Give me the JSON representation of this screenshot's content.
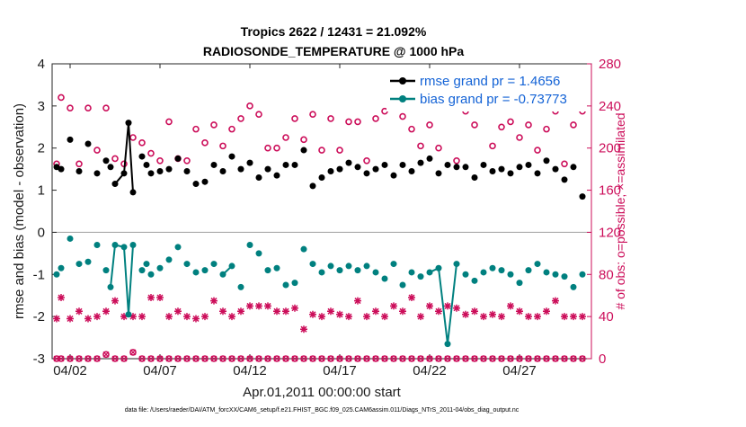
{
  "chart_data": {
    "type": "line",
    "title": "Tropics 2622 / 12431 = 21.092%",
    "subtitle": "RADIOSONDE_TEMPERATURE @ 1000 hPa",
    "xlabel": "Apr.01,2011 00:00:00 start",
    "ylabel": "rmse and bias (model - observation)",
    "ylabel_right": "# of obs: o=possible; ×=assimilated",
    "footer": "data file: /Users/raeder/DAI/ATM_forcXX/CAM6_setup/f.e21.FHIST_BGC.f09_025.CAM6assim.011/Diags_NTrS_2011-04/obs_diag_output.nc",
    "xlim": [
      0.5,
      30.5
    ],
    "ylim": [
      -3,
      4
    ],
    "ylim_right": [
      0,
      280
    ],
    "x_ticks": [
      1.5,
      6.5,
      11.5,
      16.5,
      21.5,
      26.5
    ],
    "x_tick_labels": [
      "04/02",
      "04/07",
      "04/12",
      "04/17",
      "04/22",
      "04/27"
    ],
    "y_ticks": [
      -3,
      -2,
      -1,
      0,
      1,
      2,
      3,
      4
    ],
    "y_tick_labels": [
      "-3",
      "-2",
      "-1",
      "0",
      "1",
      "2",
      "3",
      "4"
    ],
    "y_ticks_right": [
      0,
      40,
      80,
      120,
      160,
      200,
      240,
      280
    ],
    "y_tick_labels_right": [
      "0",
      "40",
      "80",
      "120",
      "160",
      "200",
      "240",
      "280"
    ],
    "colors": {
      "rmse": "#000000",
      "bias": "#00807f",
      "obs": "#cc0e5a",
      "legend_text": "#1463d6",
      "zero_line": "#aaaaaa"
    },
    "legend_position": "top-right",
    "series": [
      {
        "name": "rmse grand pr = 1.4656",
        "x": [
          0.75,
          1.0,
          1.5,
          2.0,
          2.5,
          3.0,
          3.5,
          3.75,
          4.0,
          4.5,
          4.75,
          5.0,
          5.5,
          5.75,
          6.0,
          6.5,
          7.0,
          7.5,
          8.0,
          8.5,
          9.0,
          9.5,
          10.0,
          10.5,
          11.0,
          11.5,
          12.0,
          12.5,
          13.0,
          13.5,
          14.0,
          14.5,
          15.0,
          15.5,
          16.0,
          16.5,
          17.0,
          17.5,
          18.0,
          18.5,
          19.0,
          19.5,
          20.0,
          20.5,
          21.0,
          21.5,
          22.0,
          22.5,
          23.0,
          23.5,
          24.0,
          24.5,
          25.0,
          25.5,
          26.0,
          26.5,
          27.0,
          27.5,
          28.0,
          28.5,
          29.0,
          29.5,
          30.0
        ],
        "y": [
          1.55,
          1.5,
          2.2,
          1.45,
          2.1,
          1.4,
          1.7,
          1.55,
          1.15,
          1.4,
          2.6,
          0.95,
          1.8,
          1.6,
          1.4,
          1.45,
          1.5,
          1.75,
          1.45,
          1.15,
          1.2,
          1.6,
          1.45,
          1.8,
          1.5,
          1.65,
          1.3,
          1.5,
          1.35,
          1.6,
          1.6,
          1.95,
          1.1,
          1.3,
          1.45,
          1.5,
          1.65,
          1.55,
          1.4,
          1.5,
          1.6,
          1.35,
          1.6,
          1.45,
          1.65,
          1.75,
          1.4,
          1.6,
          1.55,
          1.55,
          1.3,
          1.6,
          1.45,
          1.5,
          1.4,
          1.55,
          1.6,
          1.4,
          1.7,
          1.5,
          1.25,
          1.55,
          0.85
        ],
        "segments": [
          [
            2.5,
            2.75,
            3.0,
            3.25,
            3.5,
            3.75
          ],
          [
            11.75,
            11.9
          ]
        ]
      },
      {
        "name": "bias grand pr = -0.73773",
        "x": [
          0.75,
          1.0,
          1.5,
          2.0,
          2.5,
          3.0,
          3.5,
          3.75,
          4.0,
          4.5,
          4.75,
          5.0,
          5.5,
          5.75,
          6.0,
          6.5,
          7.0,
          7.5,
          8.0,
          8.5,
          9.0,
          9.5,
          10.0,
          10.5,
          11.0,
          11.5,
          12.0,
          12.5,
          13.0,
          13.5,
          14.0,
          14.5,
          15.0,
          15.5,
          16.0,
          16.5,
          17.0,
          17.5,
          18.0,
          18.5,
          19.0,
          19.5,
          20.0,
          20.5,
          21.0,
          21.5,
          22.0,
          22.5,
          23.0,
          23.5,
          24.0,
          24.5,
          25.0,
          25.5,
          26.0,
          26.5,
          27.0,
          27.5,
          28.0,
          28.5,
          29.0,
          29.5,
          30.0
        ],
        "y": [
          -1.0,
          -0.85,
          -0.15,
          -0.75,
          -0.7,
          -0.3,
          -0.9,
          -1.3,
          -0.3,
          -0.35,
          -1.95,
          -0.3,
          -0.9,
          -0.75,
          -1.0,
          -0.85,
          -0.65,
          -0.35,
          -0.75,
          -0.95,
          -0.9,
          -0.75,
          -1.0,
          -0.8,
          -1.3,
          -0.3,
          -0.5,
          -0.9,
          -0.85,
          -1.25,
          -1.2,
          -0.4,
          -0.75,
          -0.95,
          -0.8,
          -0.9,
          -0.8,
          -0.9,
          -0.8,
          -0.95,
          -1.1,
          -0.75,
          -1.25,
          -0.95,
          -1.05,
          -0.95,
          -0.85,
          -2.65,
          -0.75,
          -1.0,
          -1.15,
          -0.95,
          -0.85,
          -0.9,
          -1.0,
          -1.2,
          -0.9,
          -0.75,
          -0.95,
          -1.0,
          -1.05,
          -1.3,
          -1.0
        ]
      },
      {
        "name": "possible obs (o)",
        "x": [
          0.75,
          1.0,
          1.5,
          2.0,
          2.5,
          3.0,
          3.5,
          4.0,
          4.5,
          5.0,
          5.5,
          6.0,
          6.5,
          7.0,
          7.5,
          8.0,
          8.5,
          9.0,
          9.5,
          10.0,
          10.5,
          11.0,
          11.5,
          12.0,
          12.5,
          13.0,
          13.5,
          14.0,
          14.5,
          15.0,
          15.5,
          16.0,
          16.5,
          17.0,
          17.5,
          18.0,
          18.5,
          19.0,
          19.5,
          20.0,
          20.5,
          21.0,
          21.5,
          22.0,
          22.5,
          23.0,
          23.5,
          24.0,
          24.5,
          25.0,
          25.5,
          26.0,
          26.5,
          27.0,
          27.5,
          28.0,
          28.5,
          29.0,
          29.5,
          30.0
        ],
        "y": [
          185,
          248,
          238,
          185,
          238,
          198,
          238,
          190,
          185,
          210,
          205,
          195,
          188,
          225,
          190,
          188,
          218,
          205,
          222,
          202,
          218,
          228,
          240,
          232,
          200,
          200,
          210,
          228,
          208,
          232,
          198,
          228,
          198,
          225,
          225,
          188,
          228,
          235,
          238,
          230,
          218,
          202,
          222,
          200,
          240,
          188,
          235,
          222,
          238,
          202,
          220,
          225,
          210,
          222,
          198,
          218,
          235,
          185,
          222,
          235
        ],
        "label": "o"
      },
      {
        "name": "assimilated obs (×)",
        "x": [
          0.75,
          1.0,
          1.5,
          2.0,
          2.5,
          3.0,
          3.5,
          4.0,
          4.5,
          5.0,
          5.5,
          6.0,
          6.5,
          7.0,
          7.5,
          8.0,
          8.5,
          9.0,
          9.5,
          10.0,
          10.5,
          11.0,
          11.5,
          12.0,
          12.5,
          13.0,
          13.5,
          14.0,
          14.5,
          15.0,
          15.5,
          16.0,
          16.5,
          17.0,
          17.5,
          18.0,
          18.5,
          19.0,
          19.5,
          20.0,
          20.5,
          21.0,
          21.5,
          22.0,
          22.5,
          23.0,
          23.5,
          24.0,
          24.5,
          25.0,
          25.5,
          26.0,
          26.5,
          27.0,
          27.5,
          28.0,
          28.5,
          29.0,
          29.5,
          30.0
        ],
        "y": [
          38,
          58,
          38,
          45,
          38,
          40,
          45,
          55,
          40,
          40,
          40,
          58,
          58,
          40,
          45,
          40,
          38,
          40,
          55,
          45,
          40,
          45,
          50,
          50,
          50,
          45,
          45,
          48,
          28,
          42,
          40,
          45,
          42,
          40,
          55,
          40,
          45,
          40,
          50,
          45,
          58,
          40,
          50,
          45,
          50,
          48,
          42,
          45,
          40,
          42,
          40,
          50,
          45,
          40,
          40,
          45,
          55,
          40,
          40,
          40
        ],
        "label": "×"
      }
    ],
    "possible_obs_baseline": {
      "x": [
        0.75,
        1.0,
        1.5,
        2.0,
        2.5,
        3.0,
        3.5,
        4.0,
        4.5,
        5.0,
        5.5,
        6.0,
        6.5,
        7.0,
        7.5,
        8.0,
        8.5,
        9.0,
        9.5,
        10.0,
        10.5,
        11.0,
        11.5,
        12.0,
        12.5,
        13.0,
        13.5,
        14.0,
        14.5,
        15.0,
        15.5,
        16.0,
        16.5,
        17.0,
        17.5,
        18.0,
        18.5,
        19.0,
        19.5,
        20.0,
        20.5,
        21.0,
        21.5,
        22.0,
        22.5,
        23.0,
        23.5,
        24.0,
        24.5,
        25.0,
        25.5,
        26.0,
        26.5,
        27.0,
        27.5,
        28.0,
        28.5,
        29.0,
        29.5,
        30.0
      ],
      "y": [
        0,
        0,
        0,
        0,
        0,
        0,
        4,
        0,
        0,
        6,
        0,
        0,
        0,
        0,
        0,
        0,
        0,
        0,
        0,
        0,
        0,
        0,
        0,
        0,
        0,
        0,
        0,
        0,
        0,
        0,
        0,
        0,
        0,
        0,
        0,
        0,
        0,
        0,
        0,
        0,
        0,
        0,
        0,
        0,
        0,
        0,
        0,
        0,
        0,
        0,
        0,
        0,
        0,
        0,
        0,
        0,
        0,
        0,
        0,
        0
      ]
    }
  }
}
